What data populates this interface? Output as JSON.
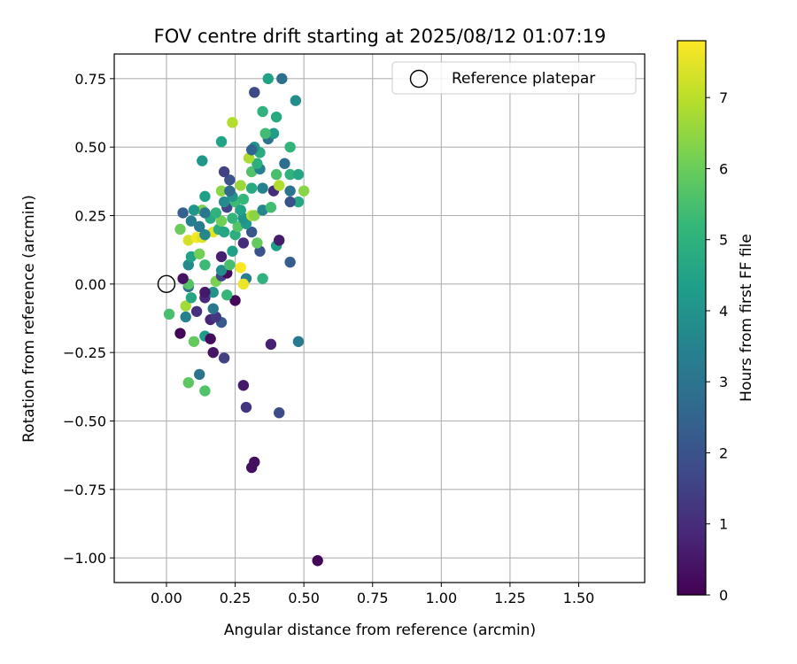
{
  "chart_data": {
    "type": "scatter",
    "title": "FOV centre drift starting at 2025/08/12 01:07:19",
    "xlabel": "Angular distance from reference (arcmin)",
    "ylabel": "Rotation from reference (arcmin)",
    "xlim": [
      -0.19,
      1.74
    ],
    "ylim": [
      -1.09,
      0.84
    ],
    "xticks": [
      0.0,
      0.25,
      0.5,
      0.75,
      1.0,
      1.25,
      1.5
    ],
    "xtick_labels": [
      "0.00",
      "0.25",
      "0.50",
      "0.75",
      "1.00",
      "1.25",
      "1.50"
    ],
    "yticks": [
      0.75,
      0.5,
      0.25,
      0.0,
      -0.25,
      -0.5,
      -0.75,
      -1.0
    ],
    "ytick_labels": [
      "0.75",
      "0.50",
      "0.25",
      "0.00",
      "−0.25",
      "−0.50",
      "−0.75",
      "−1.00"
    ],
    "grid": true,
    "legend": {
      "label": "Reference platepar",
      "position": "top-right",
      "marker": "open-circle"
    },
    "reference_point": {
      "x": 0.0,
      "y": 0.0
    },
    "colorbar": {
      "label": "Hours from first FF file",
      "colormap": "viridis",
      "min": 0,
      "max": 7.8,
      "ticks": [
        0,
        1,
        2,
        3,
        4,
        5,
        6,
        7
      ],
      "tick_labels": [
        "0",
        "1",
        "2",
        "3",
        "4",
        "5",
        "6",
        "7"
      ]
    },
    "points": [
      {
        "x": 0.55,
        "y": -1.01,
        "h": 0.1
      },
      {
        "x": 0.31,
        "y": -0.67,
        "h": 0.3
      },
      {
        "x": 0.32,
        "y": -0.65,
        "h": 0.3
      },
      {
        "x": 0.29,
        "y": -0.45,
        "h": 1.2
      },
      {
        "x": 0.28,
        "y": -0.37,
        "h": 0.5
      },
      {
        "x": 0.41,
        "y": -0.47,
        "h": 1.8
      },
      {
        "x": 0.38,
        "y": -0.22,
        "h": 0.7
      },
      {
        "x": 0.48,
        "y": -0.21,
        "h": 3.2
      },
      {
        "x": 0.21,
        "y": -0.27,
        "h": 1.5
      },
      {
        "x": 0.17,
        "y": -0.25,
        "h": 0.4
      },
      {
        "x": 0.12,
        "y": -0.33,
        "h": 3.0
      },
      {
        "x": 0.14,
        "y": -0.39,
        "h": 5.6
      },
      {
        "x": 0.08,
        "y": -0.36,
        "h": 5.8
      },
      {
        "x": 0.1,
        "y": -0.21,
        "h": 5.9
      },
      {
        "x": 0.05,
        "y": -0.18,
        "h": 0.1
      },
      {
        "x": 0.14,
        "y": -0.19,
        "h": 4.2
      },
      {
        "x": 0.16,
        "y": -0.2,
        "h": 0.2
      },
      {
        "x": 0.2,
        "y": -0.14,
        "h": 2.2
      },
      {
        "x": 0.16,
        "y": -0.13,
        "h": 0.8
      },
      {
        "x": 0.18,
        "y": -0.12,
        "h": 1.3
      },
      {
        "x": 0.07,
        "y": -0.12,
        "h": 3.4
      },
      {
        "x": 0.11,
        "y": -0.1,
        "h": 1.1
      },
      {
        "x": 0.07,
        "y": -0.08,
        "h": 6.7
      },
      {
        "x": 0.01,
        "y": -0.11,
        "h": 5.5
      },
      {
        "x": 0.17,
        "y": -0.09,
        "h": 3.1
      },
      {
        "x": 0.14,
        "y": -0.05,
        "h": 0.9
      },
      {
        "x": 0.25,
        "y": -0.06,
        "h": 0.1
      },
      {
        "x": 0.22,
        "y": -0.04,
        "h": 5.2
      },
      {
        "x": 0.09,
        "y": -0.05,
        "h": 4.6
      },
      {
        "x": 0.17,
        "y": -0.03,
        "h": 4.0
      },
      {
        "x": 0.14,
        "y": -0.03,
        "h": 0.5
      },
      {
        "x": 0.08,
        "y": -0.01,
        "h": 2.9
      },
      {
        "x": 0.08,
        "y": 0.0,
        "h": 5.7
      },
      {
        "x": 0.18,
        "y": 0.01,
        "h": 6.2
      },
      {
        "x": 0.2,
        "y": 0.03,
        "h": 1.6
      },
      {
        "x": 0.29,
        "y": 0.02,
        "h": 3.3
      },
      {
        "x": 0.28,
        "y": 0.0,
        "h": 7.6
      },
      {
        "x": 0.35,
        "y": 0.02,
        "h": 5.0
      },
      {
        "x": 0.06,
        "y": 0.02,
        "h": 0.4
      },
      {
        "x": 0.22,
        "y": 0.04,
        "h": 0.2
      },
      {
        "x": 0.27,
        "y": 0.06,
        "h": 7.8
      },
      {
        "x": 0.14,
        "y": 0.07,
        "h": 5.3
      },
      {
        "x": 0.08,
        "y": 0.07,
        "h": 3.7
      },
      {
        "x": 0.2,
        "y": 0.05,
        "h": 3.8
      },
      {
        "x": 0.23,
        "y": 0.07,
        "h": 5.5
      },
      {
        "x": 0.45,
        "y": 0.08,
        "h": 2.3
      },
      {
        "x": 0.09,
        "y": 0.1,
        "h": 4.5
      },
      {
        "x": 0.12,
        "y": 0.11,
        "h": 6.1
      },
      {
        "x": 0.2,
        "y": 0.1,
        "h": 0.7
      },
      {
        "x": 0.24,
        "y": 0.12,
        "h": 4.4
      },
      {
        "x": 0.34,
        "y": 0.12,
        "h": 2.0
      },
      {
        "x": 0.4,
        "y": 0.14,
        "h": 4.3
      },
      {
        "x": 0.41,
        "y": 0.16,
        "h": 0.6
      },
      {
        "x": 0.33,
        "y": 0.15,
        "h": 5.9
      },
      {
        "x": 0.28,
        "y": 0.15,
        "h": 1.0
      },
      {
        "x": 0.08,
        "y": 0.16,
        "h": 7.3
      },
      {
        "x": 0.11,
        "y": 0.17,
        "h": 7.7
      },
      {
        "x": 0.13,
        "y": 0.17,
        "h": 7.4
      },
      {
        "x": 0.17,
        "y": 0.19,
        "h": 7.5
      },
      {
        "x": 0.14,
        "y": 0.18,
        "h": 3.6
      },
      {
        "x": 0.05,
        "y": 0.2,
        "h": 6.0
      },
      {
        "x": 0.12,
        "y": 0.21,
        "h": 3.2
      },
      {
        "x": 0.19,
        "y": 0.2,
        "h": 4.8
      },
      {
        "x": 0.21,
        "y": 0.19,
        "h": 4.6
      },
      {
        "x": 0.25,
        "y": 0.18,
        "h": 4.9
      },
      {
        "x": 0.31,
        "y": 0.19,
        "h": 2.1
      },
      {
        "x": 0.26,
        "y": 0.21,
        "h": 5.7
      },
      {
        "x": 0.29,
        "y": 0.22,
        "h": 4.2
      },
      {
        "x": 0.09,
        "y": 0.23,
        "h": 3.3
      },
      {
        "x": 0.16,
        "y": 0.24,
        "h": 4.7
      },
      {
        "x": 0.2,
        "y": 0.23,
        "h": 6.1
      },
      {
        "x": 0.24,
        "y": 0.24,
        "h": 5.1
      },
      {
        "x": 0.28,
        "y": 0.24,
        "h": 4.0
      },
      {
        "x": 0.31,
        "y": 0.25,
        "h": 7.0
      },
      {
        "x": 0.32,
        "y": 0.25,
        "h": 6.4
      },
      {
        "x": 0.06,
        "y": 0.26,
        "h": 2.4
      },
      {
        "x": 0.13,
        "y": 0.27,
        "h": 6.2
      },
      {
        "x": 0.14,
        "y": 0.26,
        "h": 3.1
      },
      {
        "x": 0.18,
        "y": 0.26,
        "h": 5.0
      },
      {
        "x": 0.22,
        "y": 0.28,
        "h": 1.6
      },
      {
        "x": 0.25,
        "y": 0.3,
        "h": 5.3
      },
      {
        "x": 0.27,
        "y": 0.27,
        "h": 4.5
      },
      {
        "x": 0.35,
        "y": 0.27,
        "h": 3.6
      },
      {
        "x": 0.38,
        "y": 0.28,
        "h": 5.4
      },
      {
        "x": 0.1,
        "y": 0.27,
        "h": 4.1
      },
      {
        "x": 0.14,
        "y": 0.32,
        "h": 4.4
      },
      {
        "x": 0.21,
        "y": 0.3,
        "h": 3.7
      },
      {
        "x": 0.24,
        "y": 0.32,
        "h": 4.0
      },
      {
        "x": 0.28,
        "y": 0.31,
        "h": 5.2
      },
      {
        "x": 0.2,
        "y": 0.34,
        "h": 6.4
      },
      {
        "x": 0.23,
        "y": 0.34,
        "h": 2.7
      },
      {
        "x": 0.27,
        "y": 0.36,
        "h": 6.6
      },
      {
        "x": 0.31,
        "y": 0.35,
        "h": 4.7
      },
      {
        "x": 0.35,
        "y": 0.35,
        "h": 3.5
      },
      {
        "x": 0.39,
        "y": 0.34,
        "h": 1.0
      },
      {
        "x": 0.41,
        "y": 0.36,
        "h": 6.9
      },
      {
        "x": 0.45,
        "y": 0.34,
        "h": 3.0
      },
      {
        "x": 0.48,
        "y": 0.3,
        "h": 4.6
      },
      {
        "x": 0.45,
        "y": 0.3,
        "h": 1.9
      },
      {
        "x": 0.5,
        "y": 0.34,
        "h": 6.4
      },
      {
        "x": 0.23,
        "y": 0.38,
        "h": 2.0
      },
      {
        "x": 0.21,
        "y": 0.41,
        "h": 1.5
      },
      {
        "x": 0.31,
        "y": 0.41,
        "h": 5.6
      },
      {
        "x": 0.34,
        "y": 0.42,
        "h": 3.4
      },
      {
        "x": 0.33,
        "y": 0.44,
        "h": 4.9
      },
      {
        "x": 0.4,
        "y": 0.4,
        "h": 5.5
      },
      {
        "x": 0.43,
        "y": 0.44,
        "h": 2.8
      },
      {
        "x": 0.45,
        "y": 0.4,
        "h": 5.0
      },
      {
        "x": 0.48,
        "y": 0.4,
        "h": 4.6
      },
      {
        "x": 0.3,
        "y": 0.46,
        "h": 6.8
      },
      {
        "x": 0.13,
        "y": 0.45,
        "h": 4.1
      },
      {
        "x": 0.34,
        "y": 0.48,
        "h": 4.8
      },
      {
        "x": 0.32,
        "y": 0.5,
        "h": 3.9
      },
      {
        "x": 0.31,
        "y": 0.49,
        "h": 2.5
      },
      {
        "x": 0.37,
        "y": 0.53,
        "h": 3.0
      },
      {
        "x": 0.39,
        "y": 0.55,
        "h": 4.3
      },
      {
        "x": 0.36,
        "y": 0.55,
        "h": 5.4
      },
      {
        "x": 0.45,
        "y": 0.5,
        "h": 5.1
      },
      {
        "x": 0.2,
        "y": 0.52,
        "h": 4.5
      },
      {
        "x": 0.24,
        "y": 0.59,
        "h": 6.9
      },
      {
        "x": 0.35,
        "y": 0.63,
        "h": 5.0
      },
      {
        "x": 0.4,
        "y": 0.61,
        "h": 4.7
      },
      {
        "x": 0.47,
        "y": 0.67,
        "h": 3.8
      },
      {
        "x": 0.32,
        "y": 0.7,
        "h": 1.7
      },
      {
        "x": 0.37,
        "y": 0.75,
        "h": 4.5
      },
      {
        "x": 0.42,
        "y": 0.75,
        "h": 2.9
      }
    ]
  }
}
